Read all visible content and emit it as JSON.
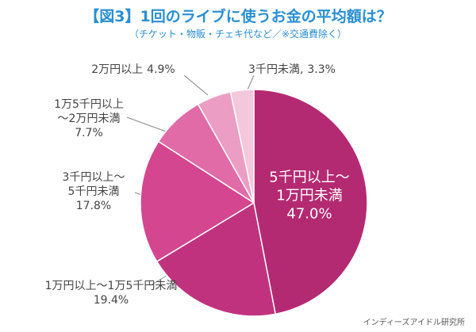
{
  "chart_data": {
    "type": "pie",
    "title": "【図3】1回のライブに使うお金の平均額は？",
    "subtitle": "（チケット・物販・チェキ代など／※交通費除く）",
    "categories": [
      "5千円以上～\n1万円未満",
      "1万円以上～1万5千円未満",
      "3千円以上～\n5千円未満",
      "1万5千円以上\n～2万円未満",
      "2万円以上",
      "3千円未満,"
    ],
    "values": [
      47.0,
      19.4,
      17.8,
      7.7,
      4.9,
      3.3
    ],
    "value_labels": [
      "47.0%",
      "19.4%",
      "17.8%",
      "7.7%",
      "4.9%",
      "3.3%"
    ],
    "colors": [
      "#b42a72",
      "#c1327e",
      "#d4468f",
      "#e06ba7",
      "#ec9dc4",
      "#f3c7dc"
    ],
    "source": "インディーズアイドル研究所"
  }
}
